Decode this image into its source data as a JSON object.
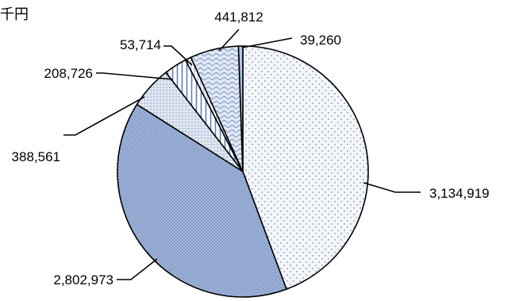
{
  "unit_label": "千円",
  "chart_data": {
    "type": "pie",
    "title": "",
    "unit": "千円",
    "slices": [
      {
        "label": "3,134,919",
        "value": 3134919,
        "fill": "#f2f5fa",
        "pattern": "dots"
      },
      {
        "label": "2,802,973",
        "value": 2802973,
        "fill": "#b4c5e4",
        "pattern": "crosshatch"
      },
      {
        "label": "388,561",
        "value": 388561,
        "fill": "#e9eef7",
        "pattern": "grid"
      },
      {
        "label": "208,726",
        "value": 208726,
        "fill": "#ffffff",
        "pattern": "vertical-stripes"
      },
      {
        "label": "53,714",
        "value": 53714,
        "fill": "#ffffff",
        "pattern": "vertical-lines"
      },
      {
        "label": "441,812",
        "value": 441812,
        "fill": "#d7e1f2",
        "pattern": "waves"
      },
      {
        "label": "39,260",
        "value": 39260,
        "fill": "#b4c5e4",
        "pattern": "solid"
      }
    ],
    "start": "12 o'clock",
    "direction": "clockwise",
    "legend": "none"
  }
}
